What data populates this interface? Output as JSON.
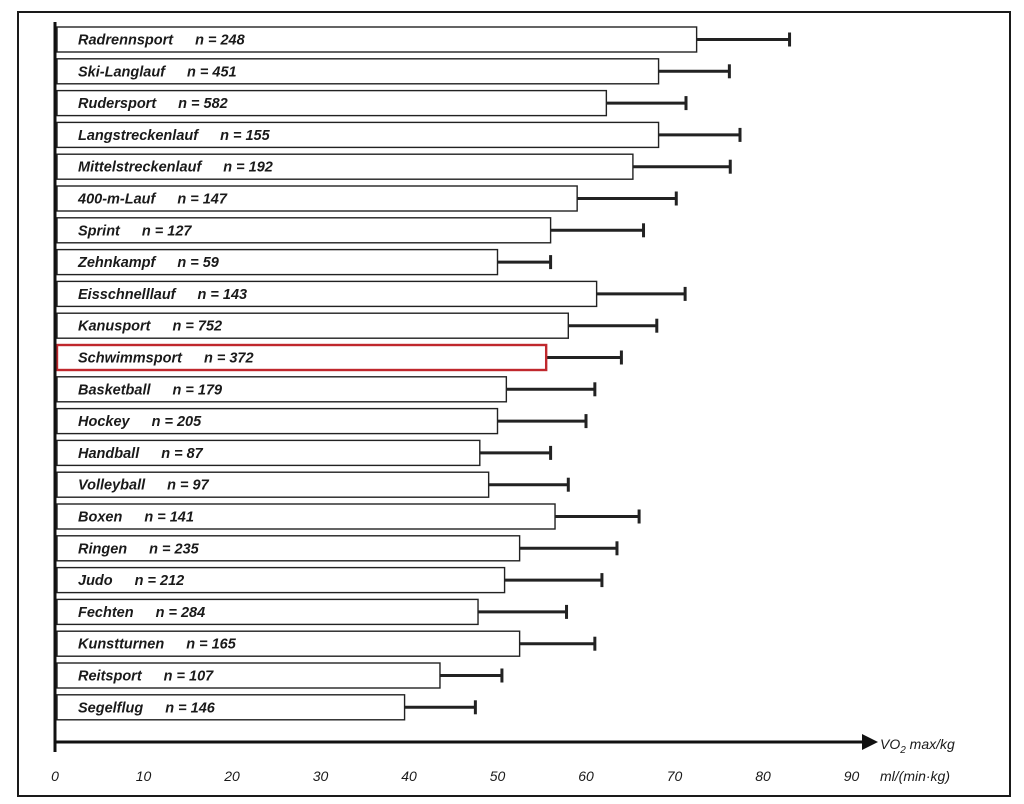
{
  "chart_data": {
    "type": "bar",
    "orientation": "horizontal",
    "xlabel_line1": "VO",
    "xlabel_sub": "2",
    "xlabel_line1_rest": " max/kg",
    "xlabel_units": "ml/(min·kg)",
    "xlim": [
      0,
      90
    ],
    "xticks": [
      0,
      10,
      20,
      30,
      40,
      50,
      60,
      70,
      80,
      90
    ],
    "grid": false,
    "error_bars": "positive-only",
    "highlight": "Schwimmsport",
    "highlight_color": "#c0282d",
    "categories": [
      {
        "name": "Radrennsport",
        "n": "n = 248",
        "value": 72.5,
        "error": 10.5
      },
      {
        "name": "Ski-Langlauf",
        "n": "n = 451",
        "value": 68.2,
        "error": 8.0
      },
      {
        "name": "Rudersport",
        "n": "n = 582",
        "value": 62.3,
        "error": 9.0
      },
      {
        "name": "Langstreckenlauf",
        "n": "n = 155",
        "value": 68.2,
        "error": 9.2
      },
      {
        "name": "Mittelstreckenlauf",
        "n": "n = 192",
        "value": 65.3,
        "error": 11.0
      },
      {
        "name": "400-m-Lauf",
        "n": "n = 147",
        "value": 59.0,
        "error": 11.2
      },
      {
        "name": "Sprint",
        "n": "n = 127",
        "value": 56.0,
        "error": 10.5
      },
      {
        "name": "Zehnkampf",
        "n": "n = 59",
        "value": 50.0,
        "error": 6.0
      },
      {
        "name": "Eisschnelllauf",
        "n": "n = 143",
        "value": 61.2,
        "error": 10.0
      },
      {
        "name": "Kanusport",
        "n": "n = 752",
        "value": 58.0,
        "error": 10.0
      },
      {
        "name": "Schwimmsport",
        "n": "n = 372",
        "value": 55.5,
        "error": 8.5
      },
      {
        "name": "Basketball",
        "n": "n = 179",
        "value": 51.0,
        "error": 10.0
      },
      {
        "name": "Hockey",
        "n": "n = 205",
        "value": 50.0,
        "error": 10.0
      },
      {
        "name": "Handball",
        "n": "n = 87",
        "value": 48.0,
        "error": 8.0
      },
      {
        "name": "Volleyball",
        "n": "n = 97",
        "value": 49.0,
        "error": 9.0
      },
      {
        "name": "Boxen",
        "n": "n = 141",
        "value": 56.5,
        "error": 9.5
      },
      {
        "name": "Ringen",
        "n": "n = 235",
        "value": 52.5,
        "error": 11.0
      },
      {
        "name": "Judo",
        "n": "n = 212",
        "value": 50.8,
        "error": 11.0
      },
      {
        "name": "Fechten",
        "n": "n = 284",
        "value": 47.8,
        "error": 10.0
      },
      {
        "name": "Kunstturnen",
        "n": "n = 165",
        "value": 52.5,
        "error": 8.5
      },
      {
        "name": "Reitsport",
        "n": "n = 107",
        "value": 43.5,
        "error": 7.0
      },
      {
        "name": "Segelflug",
        "n": "n = 146",
        "value": 39.5,
        "error": 8.0
      }
    ]
  }
}
